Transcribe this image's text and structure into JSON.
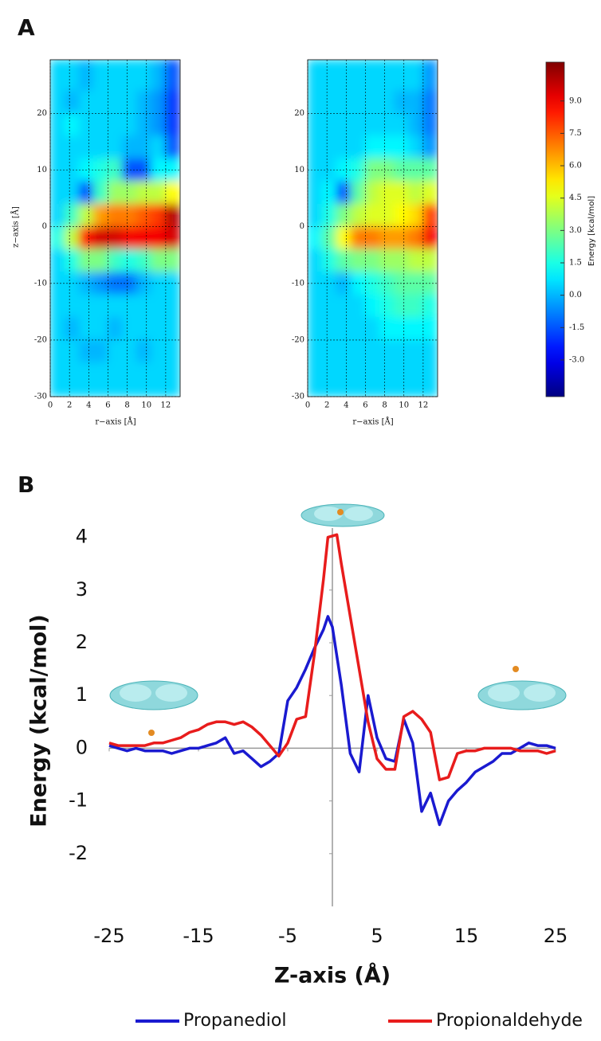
{
  "chart_data": [
    {
      "type": "heatmap",
      "panel_label": "A",
      "xlabel": "r−axis [Å]",
      "ylabel": "z−axis [Å]",
      "xlim": [
        0,
        13.5
      ],
      "xticks": [
        0,
        2,
        4,
        6,
        8,
        10,
        12
      ],
      "ylim": [
        -30,
        29.5
      ],
      "yticks": [
        -30,
        -20,
        -10,
        0,
        10,
        20
      ],
      "grid": true,
      "x_edges": [
        0,
        1.5,
        3,
        4.5,
        6,
        7.5,
        9,
        10.5,
        12,
        13.5
      ],
      "y_edges": [
        29.5,
        24,
        20,
        16,
        12,
        8,
        4,
        0,
        -4,
        -8,
        -12,
        -16,
        -20,
        -24,
        -30
      ],
      "panels": [
        {
          "z": [
            [
              0.5,
              0.5,
              0,
              0.5,
              0.5,
              0.5,
              0.5,
              0,
              -1.5
            ],
            [
              0.5,
              0,
              0.5,
              0.5,
              0.5,
              0.5,
              0,
              -0.5,
              -2
            ],
            [
              0.5,
              1,
              0.5,
              0.5,
              0.5,
              0.5,
              0,
              -0.5,
              -2
            ],
            [
              0.5,
              0.5,
              0.5,
              0.5,
              0.5,
              0,
              0,
              0.5,
              -1.5
            ],
            [
              0.5,
              0.5,
              1,
              1.5,
              2,
              -1.5,
              -1.5,
              1,
              1
            ],
            [
              0.5,
              0.5,
              -1.5,
              2,
              3.5,
              3.5,
              4,
              4,
              5
            ],
            [
              0.5,
              2,
              4,
              6.5,
              7,
              7,
              7.5,
              8,
              10
            ],
            [
              1.5,
              4,
              8.5,
              9.5,
              9.5,
              9,
              9,
              9,
              9.5
            ],
            [
              0.5,
              1.5,
              3,
              3,
              2,
              1.5,
              2,
              3,
              3
            ],
            [
              0.5,
              0.5,
              0,
              -0.5,
              -1,
              -1,
              0,
              0.5,
              0.5
            ],
            [
              0.5,
              0.5,
              0.5,
              0.5,
              0.5,
              0.5,
              0.5,
              0.5,
              0.5
            ],
            [
              0.5,
              0,
              0.5,
              0.5,
              0,
              0.5,
              0.5,
              0.5,
              0.5
            ],
            [
              0.5,
              0.5,
              0,
              0,
              0.5,
              0.5,
              0,
              0.5,
              0.5
            ],
            [
              0.5,
              0.5,
              0.5,
              0.5,
              0.5,
              0.5,
              0.5,
              0.5,
              0.5
            ]
          ]
        },
        {
          "z": [
            [
              0.5,
              0.5,
              0.5,
              0.5,
              0.5,
              0.5,
              0.5,
              0.5,
              -0.5
            ],
            [
              0.5,
              0.5,
              0.5,
              0.5,
              0.5,
              0.5,
              0,
              0,
              -1
            ],
            [
              0.5,
              0.5,
              0.5,
              0.5,
              0.5,
              0.5,
              0.5,
              0,
              -1
            ],
            [
              0.5,
              0.5,
              0.5,
              0.5,
              1,
              1,
              1,
              0.5,
              -0.5
            ],
            [
              0.5,
              0.5,
              1,
              1.5,
              3,
              3,
              2.5,
              2.5,
              2.5
            ],
            [
              0.5,
              1,
              -1.5,
              2.5,
              4,
              4.5,
              4.5,
              4,
              4.5
            ],
            [
              0.5,
              1.5,
              3,
              4,
              4.5,
              4.5,
              5,
              5.5,
              8
            ],
            [
              1,
              2.5,
              5,
              7,
              7,
              6.5,
              6.5,
              7,
              9
            ],
            [
              0.5,
              1.5,
              2.5,
              3,
              3,
              3.5,
              3.5,
              4,
              4
            ],
            [
              0.5,
              0.5,
              0,
              1,
              1.5,
              2,
              2.5,
              2.5,
              2.5
            ],
            [
              0.5,
              0.5,
              0.5,
              0.5,
              1,
              1.5,
              2,
              2,
              1.5
            ],
            [
              0.5,
              0.5,
              0.5,
              0.5,
              0.5,
              1,
              1,
              1,
              1
            ],
            [
              0.5,
              0.5,
              0.5,
              0.5,
              0.5,
              0.5,
              0.5,
              0.5,
              0.5
            ],
            [
              0.5,
              0.5,
              0.5,
              0.5,
              0.5,
              0.5,
              0.5,
              0.5,
              0.5
            ]
          ]
        }
      ],
      "colorbar": {
        "label": "Energy [kcal/mol]",
        "zlim": [
          -4.7,
          10.8
        ],
        "colormap": "jet",
        "ticks": [
          {
            "value": -3,
            "label": "-3.0"
          },
          {
            "value": -1.5,
            "label": "-1.5"
          },
          {
            "value": 0,
            "label": "0.0"
          },
          {
            "value": 1.5,
            "label": "1.5"
          },
          {
            "value": 3,
            "label": "3.0"
          },
          {
            "value": 4.5,
            "label": "4.5"
          },
          {
            "value": 6,
            "label": "6.0"
          },
          {
            "value": 7.5,
            "label": "7.5"
          },
          {
            "value": 9,
            "label": "9.0"
          }
        ]
      }
    },
    {
      "type": "line",
      "panel_label": "B",
      "xlabel": "Z-axis (Å)",
      "ylabel": "Energy (kcal/mol)",
      "xlim": [
        -25,
        25
      ],
      "xticks": [
        -25,
        -15,
        -5,
        5,
        15,
        25
      ],
      "ylim": [
        -3,
        4.1
      ],
      "yticks": [
        -2,
        -1,
        0,
        1,
        2,
        3,
        4
      ],
      "legend": "bottom",
      "series": [
        {
          "name": "Propanediol",
          "color": "#1a1ad0",
          "x": [
            -25,
            -24,
            -23,
            -22,
            -21,
            -20,
            -19,
            -18,
            -17,
            -16,
            -15,
            -14,
            -13,
            -12,
            -11,
            -10,
            -9,
            -8,
            -7,
            -6,
            -5,
            -4,
            -3,
            -2,
            -1,
            -0.5,
            0,
            1,
            2,
            3,
            4,
            5,
            6,
            7,
            8,
            9,
            10,
            11,
            12,
            13,
            14,
            15,
            16,
            17,
            18,
            19,
            20,
            21,
            22,
            23,
            24,
            25
          ],
          "values": [
            0.05,
            0,
            -0.05,
            0,
            -0.05,
            -0.05,
            -0.05,
            -0.1,
            -0.05,
            0,
            0,
            0.05,
            0.1,
            0.2,
            -0.1,
            -0.05,
            -0.2,
            -0.35,
            -0.25,
            -0.1,
            0.9,
            1.15,
            1.5,
            1.9,
            2.25,
            2.5,
            2.3,
            1.2,
            -0.1,
            -0.45,
            1.0,
            0.2,
            -0.2,
            -0.25,
            0.55,
            0.1,
            -1.2,
            -0.85,
            -1.45,
            -1.0,
            -0.8,
            -0.65,
            -0.45,
            -0.35,
            -0.25,
            -0.1,
            -0.1,
            0,
            0.1,
            0.05,
            0.05,
            0
          ]
        },
        {
          "name": "Propionaldehyde",
          "color": "#e81c1c",
          "x": [
            -25,
            -24,
            -23,
            -22,
            -21,
            -20,
            -19,
            -18,
            -17,
            -16,
            -15,
            -14,
            -13,
            -12,
            -11,
            -10,
            -9,
            -8,
            -7,
            -6,
            -5,
            -4,
            -3,
            -2,
            -1,
            -0.5,
            0.5,
            1,
            2,
            3,
            4,
            5,
            6,
            7,
            8,
            9,
            10,
            11,
            12,
            13,
            14,
            15,
            16,
            17,
            18,
            19,
            20,
            21,
            22,
            23,
            24,
            25
          ],
          "values": [
            0.1,
            0.05,
            0.05,
            0.05,
            0.05,
            0.1,
            0.1,
            0.15,
            0.2,
            0.3,
            0.35,
            0.45,
            0.5,
            0.5,
            0.45,
            0.5,
            0.4,
            0.25,
            0.05,
            -0.15,
            0.1,
            0.55,
            0.6,
            1.8,
            3.2,
            4.0,
            4.05,
            3.5,
            2.5,
            1.5,
            0.5,
            -0.2,
            -0.4,
            -0.4,
            0.6,
            0.7,
            0.55,
            0.3,
            -0.6,
            -0.55,
            -0.1,
            -0.05,
            -0.05,
            0,
            0,
            0,
            0,
            -0.05,
            -0.05,
            -0.05,
            -0.1,
            -0.05
          ]
        }
      ]
    }
  ]
}
